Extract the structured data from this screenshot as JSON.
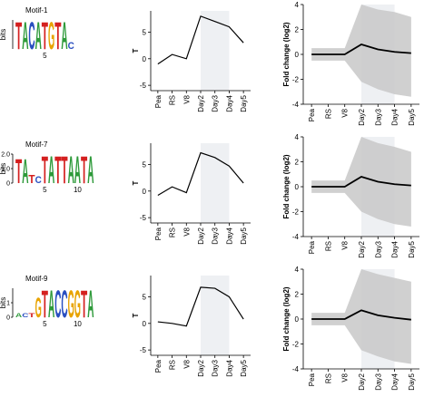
{
  "motifs": [
    {
      "title": "Motif-1",
      "ylabel": "bits",
      "ylim": [
        0,
        2
      ],
      "yticks": [],
      "letters": [
        "T",
        "A",
        "C",
        "A",
        "T",
        "G",
        "T",
        "A",
        "C"
      ],
      "heights": [
        1.9,
        1.9,
        1.9,
        1.9,
        1.9,
        1.9,
        1.9,
        1.9,
        0.5
      ],
      "xticks": [
        5
      ]
    },
    {
      "title": "Motif-7",
      "ylabel": "bits",
      "ylim": [
        0,
        2
      ],
      "yticks": [
        0,
        {
          "value": 1,
          "label": "1.0"
        },
        {
          "value": 2,
          "label": "2.0"
        }
      ],
      "letters": [
        "T",
        "A",
        "T",
        "C",
        "T",
        "A",
        "T",
        "T",
        "A",
        "A",
        "T",
        "A"
      ],
      "heights": [
        1.7,
        1.7,
        0.6,
        0.5,
        1.9,
        1.9,
        1.9,
        1.9,
        1.9,
        1.9,
        1.9,
        1.9
      ],
      "xticks": [
        5,
        10
      ]
    },
    {
      "title": "Motif-9",
      "ylabel": "bits",
      "ylim": [
        0,
        2
      ],
      "yticks": [
        0,
        1
      ],
      "letters": [
        "A",
        "C",
        "T",
        "G",
        "T",
        "A",
        "C",
        "C",
        "G",
        "G",
        "T",
        "A"
      ],
      "heights": [
        0.3,
        0.3,
        0.3,
        1.4,
        1.9,
        1.9,
        1.9,
        1.9,
        1.9,
        1.9,
        1.9,
        1.9
      ],
      "xticks": [
        5,
        10
      ]
    }
  ],
  "letter_colors": {
    "A": "#2e9a3a",
    "C": "#2a4fc0",
    "G": "#e8a300",
    "T": "#d42020"
  },
  "chart_data": [
    {
      "type": "line",
      "ylabel": "T",
      "categories": [
        "Pea",
        "RS",
        "V8",
        "Day2",
        "Day3",
        "Day4",
        "Day5"
      ],
      "highlight": [
        3,
        5
      ],
      "highlight_color": "#eef0f3",
      "series": [
        {
          "color": "#000000",
          "values": [
            -1,
            0.8,
            0,
            8,
            7,
            6,
            3
          ]
        }
      ],
      "ylim": [
        -6,
        9
      ],
      "yticks": [
        -5,
        0,
        5
      ]
    },
    {
      "type": "line",
      "ylabel": "Fold change (log2)",
      "categories": [
        "Pea",
        "RS",
        "V8",
        "Day2",
        "Day3",
        "Day4",
        "Day5"
      ],
      "highlight": [
        3,
        5
      ],
      "highlight_color": "#eef0f3",
      "band": {
        "color": "#c8c8c8",
        "upper": [
          0.5,
          0.5,
          0.5,
          4,
          3.6,
          3.4,
          3
        ],
        "lower": [
          -0.5,
          -0.5,
          -0.5,
          -2.2,
          -2.8,
          -3.2,
          -3.4
        ]
      },
      "series": [
        {
          "color": "#000000",
          "values": [
            0,
            0,
            0,
            0.8,
            0.4,
            0.2,
            0.1
          ]
        }
      ],
      "ylim": [
        -4,
        4
      ],
      "yticks": [
        -4,
        -2,
        0,
        2,
        4
      ]
    },
    {
      "type": "line",
      "ylabel": "T",
      "categories": [
        "Pea",
        "RS",
        "V8",
        "Day2",
        "Day3",
        "Day4",
        "Day5"
      ],
      "highlight": [
        3,
        5
      ],
      "highlight_color": "#eef0f3",
      "series": [
        {
          "color": "#000000",
          "values": [
            -0.8,
            0.8,
            -0.3,
            7.2,
            6.3,
            4.7,
            1.5
          ]
        }
      ],
      "ylim": [
        -6,
        9
      ],
      "yticks": [
        -5,
        0,
        5
      ]
    },
    {
      "type": "line",
      "ylabel": "Fold change (log2)",
      "categories": [
        "Pea",
        "RS",
        "V8",
        "Day2",
        "Day3",
        "Day4",
        "Day5"
      ],
      "highlight": [
        3,
        5
      ],
      "highlight_color": "#eef0f3",
      "band": {
        "color": "#c8c8c8",
        "upper": [
          0.5,
          0.5,
          0.5,
          4,
          3.5,
          3.2,
          2.8
        ],
        "lower": [
          -0.5,
          -0.5,
          -0.5,
          -2,
          -2.6,
          -3,
          -3.2
        ]
      },
      "series": [
        {
          "color": "#000000",
          "values": [
            0,
            0,
            0,
            0.8,
            0.4,
            0.2,
            0.1
          ]
        }
      ],
      "ylim": [
        -4,
        4
      ],
      "yticks": [
        -4,
        -2,
        0,
        2,
        4
      ]
    },
    {
      "type": "line",
      "ylabel": "T",
      "categories": [
        "Pea",
        "RS",
        "V8",
        "Day2",
        "Day3",
        "Day4",
        "Day5"
      ],
      "highlight": [
        3,
        5
      ],
      "highlight_color": "#eef0f3",
      "series": [
        {
          "color": "#000000",
          "values": [
            0.3,
            0,
            -0.5,
            6.8,
            6.6,
            5,
            0.8
          ]
        }
      ],
      "ylim": [
        -6,
        9
      ],
      "yticks": [
        -5,
        0,
        5
      ]
    },
    {
      "type": "line",
      "ylabel": "Fold change (log2)",
      "categories": [
        "Pea",
        "RS",
        "V8",
        "Day2",
        "Day3",
        "Day4",
        "Day5"
      ],
      "highlight": [
        3,
        5
      ],
      "highlight_color": "#eef0f3",
      "band": {
        "color": "#c8c8c8",
        "upper": [
          0.5,
          0.5,
          0.5,
          4,
          3.6,
          3.3,
          3
        ],
        "lower": [
          -0.5,
          -0.5,
          -0.5,
          -2.5,
          -3,
          -3.4,
          -3.6
        ]
      },
      "series": [
        {
          "color": "#000000",
          "values": [
            0,
            0,
            0,
            0.7,
            0.3,
            0.1,
            -0.05
          ]
        }
      ],
      "ylim": [
        -4,
        4
      ],
      "yticks": [
        -4,
        -2,
        0,
        2,
        4
      ]
    }
  ]
}
